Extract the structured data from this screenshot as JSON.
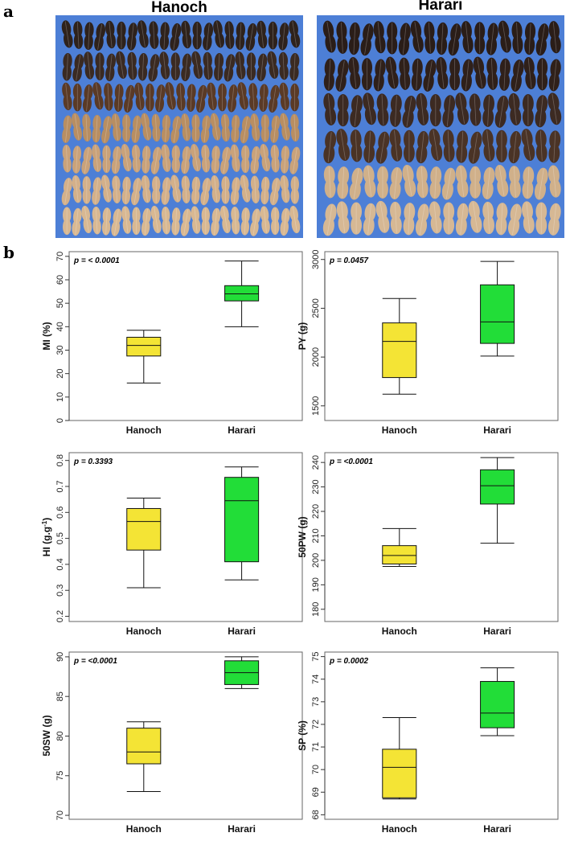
{
  "panel_a": {
    "letter": "a",
    "photos": [
      {
        "title": "Hanoch",
        "rows": [
          {
            "color": "#2e221c",
            "count": 22
          },
          {
            "color": "#3a2a22",
            "count": 22
          },
          {
            "color": "#5a3a26",
            "count": 23
          },
          {
            "color": "#b88e62",
            "count": 24
          },
          {
            "color": "#c9a27a",
            "count": 24
          },
          {
            "color": "#d3b08a",
            "count": 24
          },
          {
            "color": "#d8b892",
            "count": 24
          }
        ]
      },
      {
        "title": "Harari",
        "rows": [
          {
            "color": "#2a1d18",
            "count": 19
          },
          {
            "color": "#2f201a",
            "count": 19
          },
          {
            "color": "#3c2a22",
            "count": 18
          },
          {
            "color": "#4a3326",
            "count": 18
          },
          {
            "color": "#d0b08a",
            "count": 18
          },
          {
            "color": "#d6b894",
            "count": 18
          }
        ]
      }
    ]
  },
  "panel_b": {
    "letter": "b"
  },
  "colors": {
    "hanoch": "#f4e435",
    "harari": "#22dd38",
    "photo_bg": "#4d7fd6"
  },
  "chart_data": [
    {
      "type": "box",
      "ylabel": "MI (%)",
      "ylabel_sup": "",
      "ylabel_tail": "",
      "ptext": "p = < 0.0001",
      "ylim": [
        0,
        72
      ],
      "yticks": [
        0,
        10,
        20,
        30,
        40,
        50,
        60,
        70
      ],
      "tick_labels": [
        "0",
        "10",
        "20",
        "30",
        "40",
        "50",
        "60",
        "70"
      ],
      "categories": [
        "Hanoch",
        "Harari"
      ],
      "boxes": [
        {
          "min": 16,
          "q1": 27.5,
          "median": 32,
          "q3": 35.5,
          "max": 38.5
        },
        {
          "min": 40,
          "q1": 51,
          "median": 54,
          "q3": 57.5,
          "max": 68
        }
      ]
    },
    {
      "type": "box",
      "ylabel": "PY (g)",
      "ylabel_sup": "",
      "ylabel_tail": "",
      "ptext": "p = 0.0457",
      "ylim": [
        1350,
        3080
      ],
      "yticks": [
        1500,
        2000,
        2500,
        3000
      ],
      "tick_labels": [
        "1500",
        "2000",
        "2500",
        "3000"
      ],
      "categories": [
        "Hanoch",
        "Harari"
      ],
      "boxes": [
        {
          "min": 1620,
          "q1": 1790,
          "median": 2160,
          "q3": 2350,
          "max": 2600
        },
        {
          "min": 2010,
          "q1": 2140,
          "median": 2360,
          "q3": 2740,
          "max": 2980
        }
      ]
    },
    {
      "type": "box",
      "ylabel": "HI (g.g",
      "ylabel_sup": "-1",
      "ylabel_tail": ")",
      "ptext": "p = 0.3393",
      "ylim": [
        0.18,
        0.83
      ],
      "yticks": [
        0.2,
        0.3,
        0.4,
        0.5,
        0.6,
        0.7,
        0.8
      ],
      "tick_labels": [
        "0.2",
        "0.3",
        "0.4",
        "0.5",
        "0.6",
        "0.7",
        "0.8"
      ],
      "categories": [
        "Hanoch",
        "Harari"
      ],
      "boxes": [
        {
          "min": 0.31,
          "q1": 0.455,
          "median": 0.565,
          "q3": 0.615,
          "max": 0.655
        },
        {
          "min": 0.34,
          "q1": 0.41,
          "median": 0.645,
          "q3": 0.735,
          "max": 0.775
        }
      ]
    },
    {
      "type": "box",
      "ylabel": "50PW (g)",
      "ylabel_sup": "",
      "ylabel_tail": "",
      "ptext": "p = <0.0001",
      "ylim": [
        175,
        244
      ],
      "yticks": [
        180,
        190,
        200,
        210,
        220,
        230,
        240
      ],
      "tick_labels": [
        "180",
        "190",
        "200",
        "210",
        "220",
        "230",
        "240"
      ],
      "categories": [
        "Hanoch",
        "Harari"
      ],
      "boxes": [
        {
          "min": 197.5,
          "q1": 198.5,
          "median": 202,
          "q3": 206,
          "max": 213
        },
        {
          "min": 207,
          "q1": 223,
          "median": 230.5,
          "q3": 237,
          "max": 242
        }
      ]
    },
    {
      "type": "box",
      "ylabel": "50SW (g)",
      "ylabel_sup": "",
      "ylabel_tail": "",
      "ptext": "p = <0.0001",
      "ylim": [
        69.5,
        90.6
      ],
      "yticks": [
        70,
        75,
        80,
        85,
        90
      ],
      "tick_labels": [
        "70",
        "75",
        "80",
        "85",
        "90"
      ],
      "categories": [
        "Hanoch",
        "Harari"
      ],
      "boxes": [
        {
          "min": 73,
          "q1": 76.5,
          "median": 78,
          "q3": 81,
          "max": 81.8
        },
        {
          "min": 86,
          "q1": 86.5,
          "median": 88,
          "q3": 89.5,
          "max": 90
        }
      ]
    },
    {
      "type": "box",
      "ylabel": "SP (%)",
      "ylabel_sup": "",
      "ylabel_tail": "",
      "ptext": "p = 0.0002",
      "ylim": [
        67.8,
        75.2
      ],
      "yticks": [
        68,
        69,
        70,
        71,
        72,
        73,
        74,
        75
      ],
      "tick_labels": [
        "68",
        "69",
        "70",
        "71",
        "72",
        "73",
        "74",
        "75"
      ],
      "categories": [
        "Hanoch",
        "Harari"
      ],
      "boxes": [
        {
          "min": 68.7,
          "q1": 68.75,
          "median": 70.1,
          "q3": 70.9,
          "max": 72.3
        },
        {
          "min": 71.5,
          "q1": 71.85,
          "median": 72.5,
          "q3": 73.9,
          "max": 74.5
        }
      ]
    }
  ]
}
